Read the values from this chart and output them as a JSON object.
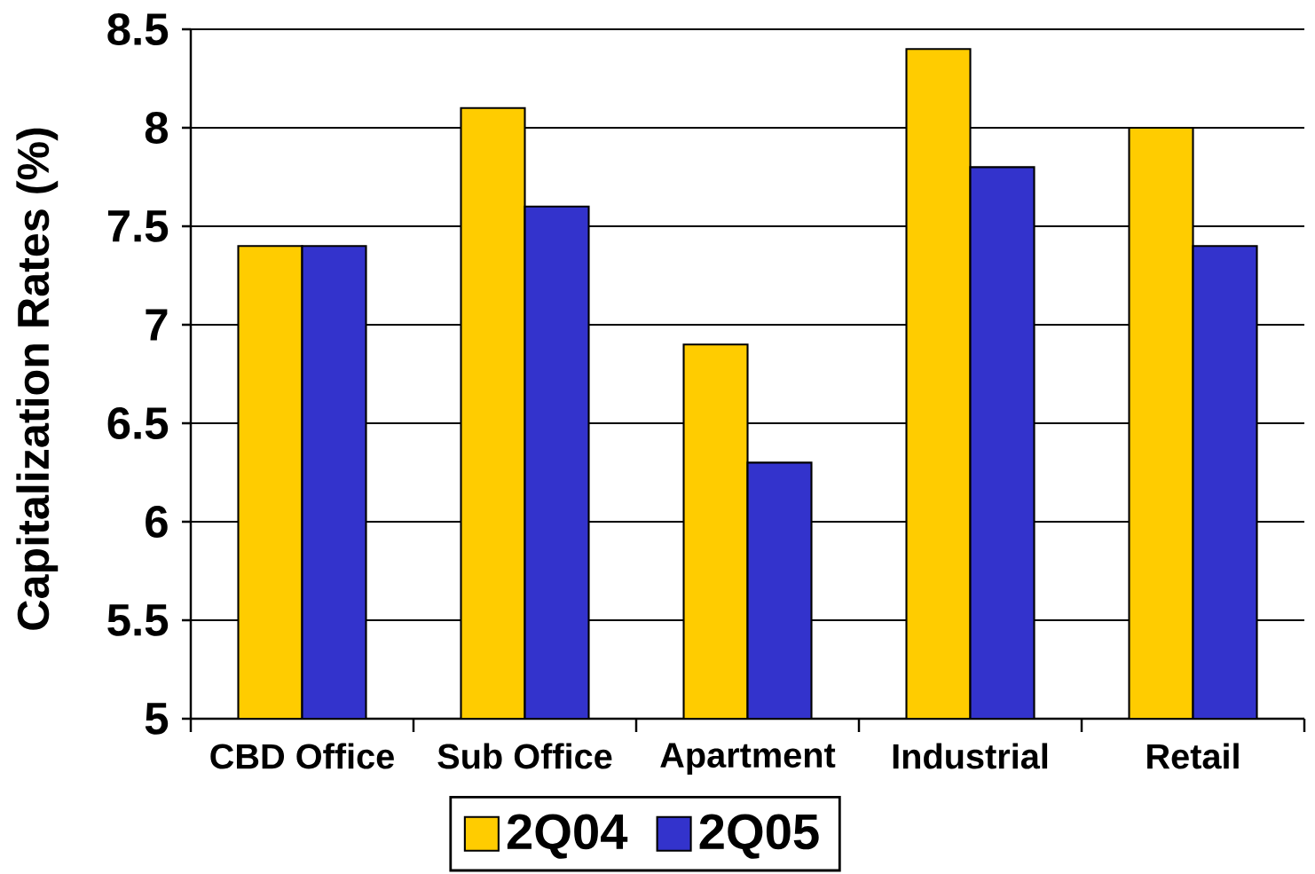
{
  "chart_data": {
    "type": "bar",
    "ylabel": "Capitalization Rates (%)",
    "categories": [
      "CBD Office",
      "Sub Office",
      "Apartment",
      "Industrial",
      "Retail"
    ],
    "series": [
      {
        "name": "2Q04",
        "color": "#ffcc00",
        "values": [
          7.4,
          8.1,
          6.9,
          8.4,
          8.0
        ]
      },
      {
        "name": "2Q05",
        "color": "#3333cc",
        "values": [
          7.4,
          7.6,
          6.3,
          7.8,
          7.4
        ]
      }
    ],
    "ylim": [
      5,
      8.5
    ],
    "yticks": [
      5,
      5.5,
      6,
      6.5,
      7,
      7.5,
      8,
      8.5
    ],
    "grid": "y",
    "legend": "bottom"
  }
}
